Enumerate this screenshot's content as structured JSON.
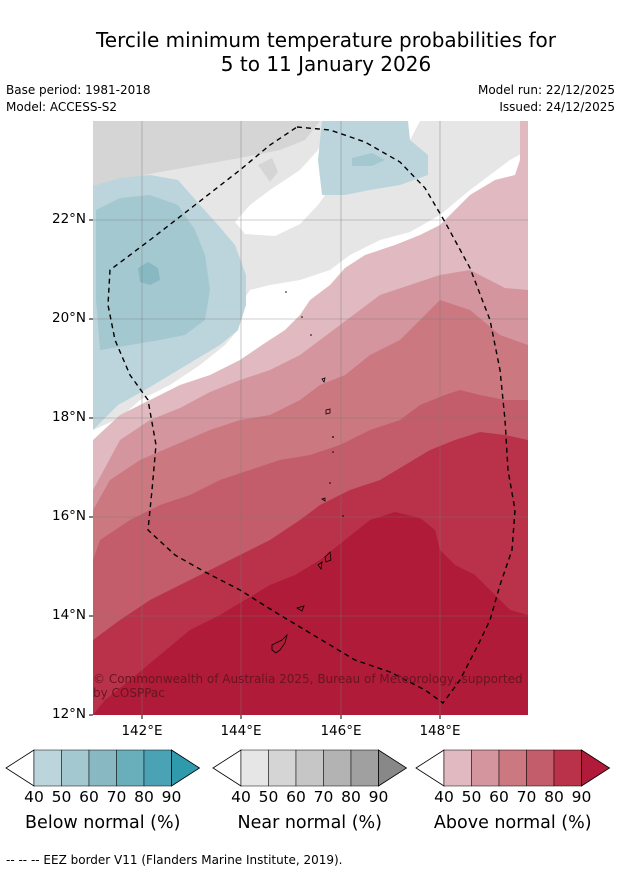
{
  "title_line1": "Tercile minimum temperature probabilities for",
  "title_line2": "5 to 11 January 2026",
  "base_period": "Base period: 1981-2018",
  "model": "Model: ACCESS-S2",
  "model_run": "Model run: 22/12/2025",
  "issued": "Issued: 24/12/2025",
  "lat_ticks": [
    "22°N",
    "20°N",
    "18°N",
    "16°N",
    "14°N",
    "12°N"
  ],
  "lon_ticks": [
    "142°E",
    "144°E",
    "146°E",
    "148°E"
  ],
  "copyright": "© Commonwealth of Australia 2025, Bureau of Meteorology, supported by COSPPac",
  "footer": "-- -- -- EEZ border V11 (Flanders Marine Institute, 2019).",
  "colorbars": [
    {
      "title": "Below normal (%)",
      "ticks": [
        "40",
        "50",
        "60",
        "70",
        "80",
        "90"
      ],
      "colors": [
        "#ffffff",
        "#bcd5dc",
        "#a3c8cf",
        "#88b9c3",
        "#68aebb",
        "#4aa3b4",
        "#2f9aac"
      ]
    },
    {
      "title": "Near normal (%)",
      "ticks": [
        "40",
        "50",
        "60",
        "70",
        "80",
        "90"
      ],
      "colors": [
        "#ffffff",
        "#e6e6e6",
        "#d5d5d5",
        "#c6c6c6",
        "#b3b3b3",
        "#a0a0a0",
        "#888888"
      ]
    },
    {
      "title": "Above normal (%)",
      "ticks": [
        "40",
        "50",
        "60",
        "70",
        "80",
        "90"
      ],
      "colors": [
        "#ffffff",
        "#e1b9c0",
        "#d5959e",
        "#cb7881",
        "#c45d6b",
        "#b93249",
        "#af1b38"
      ]
    }
  ],
  "map_colors": {
    "white": "#ffffff",
    "below1": "#bcd5dc",
    "below2": "#a3c8cf",
    "near1": "#e6e6e6",
    "near2": "#d5d5d5",
    "above1": "#e1b9c0",
    "above2": "#d5959e",
    "above3": "#cb7881",
    "above4": "#c45d6b",
    "above5": "#b93249",
    "above6": "#af1b38"
  }
}
